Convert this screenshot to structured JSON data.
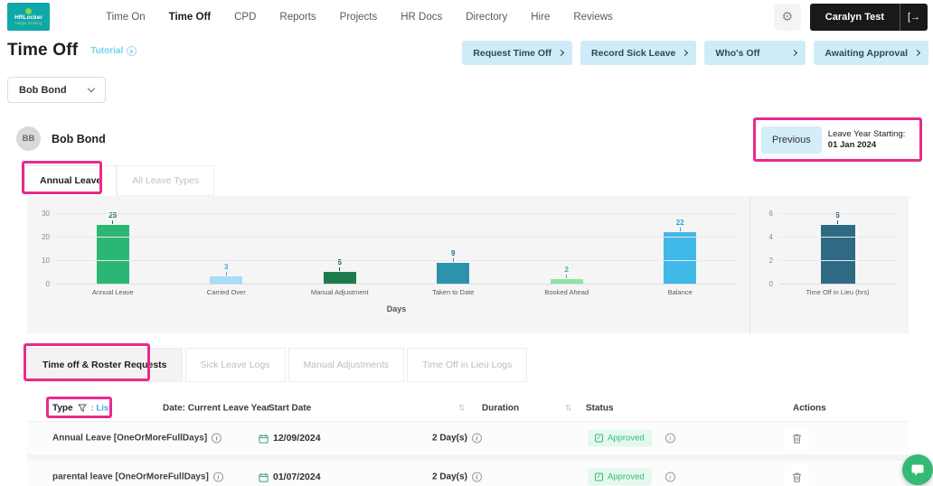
{
  "brand": {
    "name": "HRLocker",
    "tagline": "Happy working"
  },
  "nav": {
    "items": [
      "Time On",
      "Time Off",
      "CPD",
      "Reports",
      "Projects",
      "HR Docs",
      "Directory",
      "Hire",
      "Reviews"
    ],
    "active": "Time Off",
    "user_name": "Caralyn Test"
  },
  "page": {
    "title": "Time Off",
    "tutorial": "Tutorial"
  },
  "quick_actions": [
    "Request Time Off",
    "Record Sick Leave",
    "Who's Off",
    "Awaiting Approval"
  ],
  "employee_select": {
    "value": "Bob Bond"
  },
  "profile": {
    "initials": "BB",
    "name": "Bob Bond"
  },
  "leave_year": {
    "previous": "Previous",
    "label": "Leave Year Starting:",
    "date": "01 Jan 2024"
  },
  "leave_tabs": [
    "Annual Leave",
    "All Leave Types"
  ],
  "chart_data": [
    {
      "type": "bar",
      "categories": [
        "Annual Leave",
        "Carried Over",
        "Manual Adjustment",
        "Taken to Date",
        "Booked Ahead",
        "Balance"
      ],
      "values": [
        25,
        3,
        5,
        9,
        2,
        22
      ],
      "bar_colors": [
        "#2bb673",
        "#a6dcf7",
        "#1e7a4d",
        "#2d93ad",
        "#8ce3a6",
        "#41b9e8"
      ],
      "label_colors": [
        "#1e7a4a",
        "#4aa9dd",
        "#145c36",
        "#1f7086",
        "#3dbd72",
        "#2a9fd1"
      ],
      "title": "",
      "xlabel": "Days",
      "ylabel": "",
      "ylim": [
        0,
        30
      ],
      "yticks": [
        0,
        10,
        20,
        30
      ],
      "grid": true,
      "legend": false
    },
    {
      "type": "bar",
      "categories": [
        "Time Off in Lieu (hrs)"
      ],
      "values": [
        5
      ],
      "bar_colors": [
        "#2f6a85"
      ],
      "label_colors": [
        "#24556b"
      ],
      "title": "",
      "xlabel": "",
      "ylabel": "",
      "ylim": [
        0,
        6
      ],
      "yticks": [
        0,
        2,
        4,
        6
      ],
      "grid": true,
      "legend": false
    }
  ],
  "log_tabs": [
    "Time off & Roster Requests",
    "Sick Leave Logs",
    "Manual Adjustments",
    "Time Off in Lieu Logs"
  ],
  "table": {
    "col_type": "Type",
    "col_type_filter": ": List",
    "col_date": "Date: Current Leave Year",
    "col_start": "Start Date",
    "col_duration": "Duration",
    "col_status": "Status",
    "col_actions": "Actions",
    "rows": [
      {
        "type": "Annual Leave [OneOrMoreFullDays]",
        "start_date": "12/09/2024",
        "duration": "2 Day(s)",
        "status": "Approved"
      },
      {
        "type": "parental leave [OneOrMoreFullDays]",
        "start_date": "01/07/2024",
        "duration": "2 Day(s)",
        "status": "Approved"
      }
    ]
  },
  "colors": {
    "brand_teal": "#0fa7a7",
    "annotation_pink": "#ea2a8c",
    "action_blue_bg": "#cdecf8",
    "approved_green": "#3cb878",
    "chat_green": "#35ba74"
  }
}
